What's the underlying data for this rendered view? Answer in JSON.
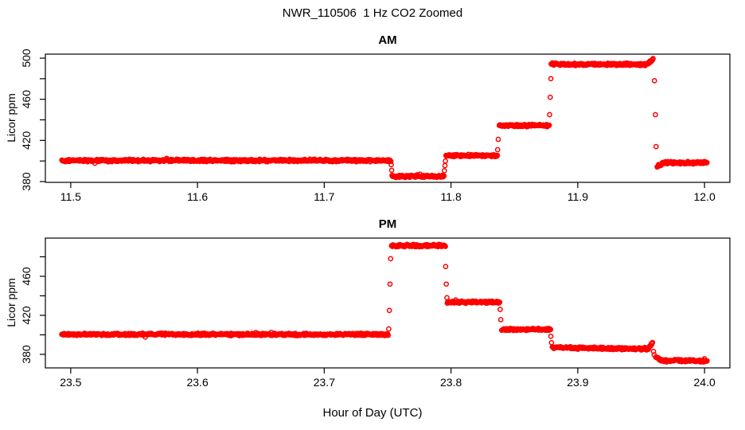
{
  "figure": {
    "title": "NWR_110506  1 Hz CO2 Zoomed",
    "xlabel": "Hour of Day (UTC)",
    "background": "#FFFFFF",
    "axis_color": "#000000"
  },
  "chart_data": [
    {
      "type": "scatter",
      "title": "AM",
      "ylabel": "Licor ppm",
      "marker": {
        "shape": "open-circle",
        "color": "#FF0000"
      },
      "x_range": [
        11.5,
        12.0
      ],
      "xlim_usr": [
        11.48,
        12.02
      ],
      "ylim_usr": [
        379.23,
        503.87
      ],
      "x_ticks": [
        11.5,
        11.6,
        11.7,
        11.8,
        11.9,
        12.0
      ],
      "x_tick_labels": [
        "11.5",
        "11.6",
        "11.7",
        "11.8",
        "11.9",
        "12.0"
      ],
      "y_ticks": [
        380,
        400,
        420,
        440,
        460,
        480,
        500
      ],
      "y_ticks_labeled": [
        380,
        420,
        460,
        500
      ],
      "y_tick_labels": [
        "380",
        "420",
        "460",
        "500"
      ],
      "grid": false,
      "legend": null,
      "segments": [
        {
          "t0": 11.493,
          "t1": 11.7525,
          "y0": 400.5,
          "y1": 400.5
        },
        {
          "t0": 11.7535,
          "t1": 11.7945,
          "y0": 385.2,
          "y1": 385.2
        },
        {
          "t0": 11.796,
          "t1": 11.8365,
          "y0": 405.3,
          "y1": 405.3
        },
        {
          "t0": 11.838,
          "t1": 11.8775,
          "y0": 434.5,
          "y1": 434.5
        },
        {
          "t0": 11.879,
          "t1": 11.954,
          "y0": 494.0,
          "y1": 494.0
        },
        {
          "t0": 11.954,
          "t1": 11.9595,
          "y0": 494.0,
          "y1": 498.5
        },
        {
          "t0": 11.9625,
          "t1": 11.968,
          "y0": 394.5,
          "y1": 398.3
        },
        {
          "t0": 11.968,
          "t1": 12.002,
          "y0": 398.3,
          "y1": 398.3
        }
      ],
      "transition_points": [
        [
          11.7528,
          396.5
        ],
        [
          11.7532,
          391.0
        ],
        [
          11.7948,
          390.5
        ],
        [
          11.7952,
          395.5
        ],
        [
          11.7956,
          400.0
        ],
        [
          11.8368,
          411.0
        ],
        [
          11.8373,
          421.0
        ],
        [
          11.8778,
          445.0
        ],
        [
          11.8783,
          462.0
        ],
        [
          11.8788,
          480.0
        ],
        [
          11.9605,
          478.0
        ],
        [
          11.9612,
          445.0
        ],
        [
          11.9618,
          414.0
        ]
      ]
    },
    {
      "type": "scatter",
      "title": "PM",
      "ylabel": "Licor ppm",
      "marker": {
        "shape": "open-circle",
        "color": "#FF0000"
      },
      "x_range": [
        23.5,
        24.0
      ],
      "xlim_usr": [
        23.48,
        24.02
      ],
      "ylim_usr": [
        366.12,
        499.18
      ],
      "x_ticks": [
        23.5,
        23.6,
        23.7,
        23.8,
        23.9,
        24.0
      ],
      "x_tick_labels": [
        "23.5",
        "23.6",
        "23.7",
        "23.8",
        "23.9",
        "24.0"
      ],
      "y_ticks": [
        380,
        400,
        420,
        440,
        460,
        480
      ],
      "y_ticks_labeled": [
        380,
        420,
        460
      ],
      "y_tick_labels": [
        "380",
        "420",
        "460"
      ],
      "grid": false,
      "legend": null,
      "segments": [
        {
          "t0": 23.493,
          "t1": 23.7505,
          "y0": 400.5,
          "y1": 400.5
        },
        {
          "t0": 23.753,
          "t1": 23.7955,
          "y0": 491.5,
          "y1": 491.5
        },
        {
          "t0": 23.797,
          "t1": 23.8385,
          "y0": 433.5,
          "y1": 433.5
        },
        {
          "t0": 23.84,
          "t1": 23.8785,
          "y0": 405.5,
          "y1": 405.5
        },
        {
          "t0": 23.88,
          "t1": 23.9555,
          "y0": 387.0,
          "y1": 385.5
        },
        {
          "t0": 23.9555,
          "t1": 23.959,
          "y0": 386.0,
          "y1": 392.0
        },
        {
          "t0": 23.9615,
          "t1": 23.966,
          "y0": 377.5,
          "y1": 374.0
        },
        {
          "t0": 23.966,
          "t1": 24.002,
          "y0": 373.5,
          "y1": 373.5
        }
      ],
      "transition_points": [
        [
          23.7509,
          406.0
        ],
        [
          23.7514,
          425.0
        ],
        [
          23.7519,
          452.0
        ],
        [
          23.7524,
          478.0
        ],
        [
          23.7958,
          470.0
        ],
        [
          23.7963,
          452.0
        ],
        [
          23.7968,
          438.0
        ],
        [
          23.8388,
          426.0
        ],
        [
          23.8393,
          415.5
        ],
        [
          23.8788,
          398.5
        ],
        [
          23.8793,
          392.0
        ],
        [
          23.9597,
          383.0
        ],
        [
          23.9603,
          379.5
        ]
      ]
    }
  ]
}
